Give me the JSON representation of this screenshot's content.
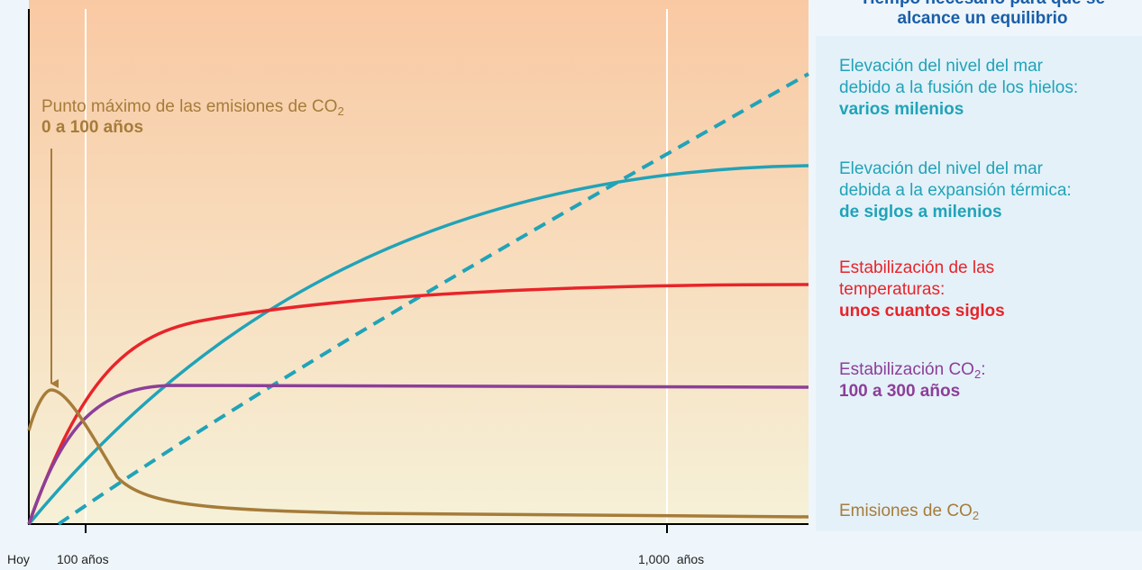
{
  "header": {
    "title": [
      "Tiempo necesario para que se",
      "alcance un equilibrio"
    ]
  },
  "annotation": {
    "text": "Punto máximo de las emisiones de CO",
    "sub": "2",
    "range": "0 a 100 años"
  },
  "legend": [
    {
      "lines": [
        "Elevación del nivel del mar",
        "debido a la fusión de los hielos:"
      ],
      "bold": "varios milenios"
    },
    {
      "lines": [
        "Elevación del nivel del mar",
        "debida a la expansión térmica:"
      ],
      "bold": "de siglos a milenios"
    },
    {
      "lines": [
        "Estabilización de las",
        "temperaturas:"
      ],
      "bold": "unos cuantos siglos"
    },
    {
      "text": "Estabilización CO",
      "sub": "2",
      "tail": ":",
      "bold": "100 a 300 años"
    },
    {
      "text": "Emisiones de CO",
      "sub": "2"
    }
  ],
  "x_axis": {
    "labels": [
      "Hoy",
      "100 años",
      "1,000  años"
    ]
  }
}
